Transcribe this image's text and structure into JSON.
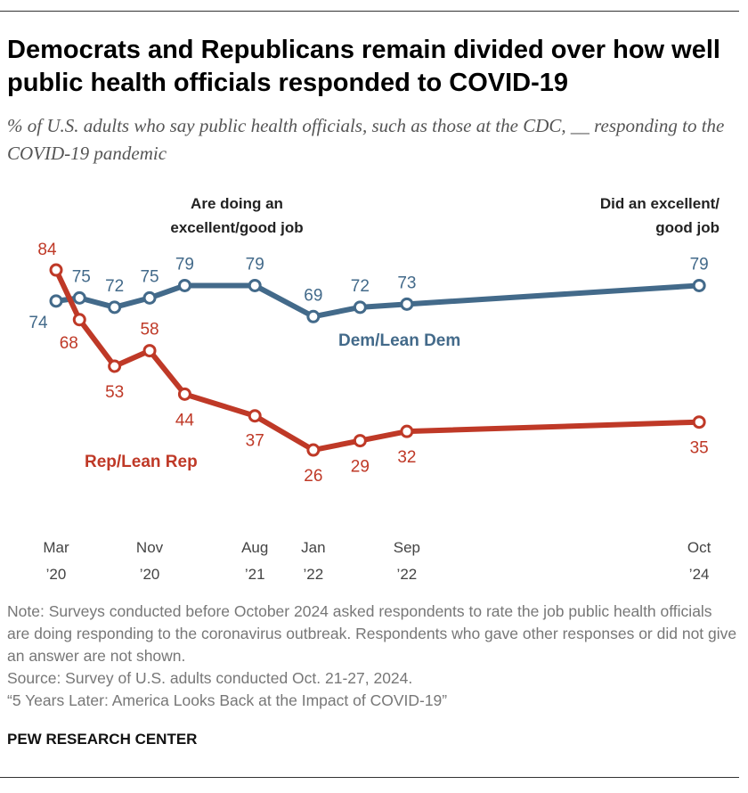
{
  "title": "Democrats and Republicans remain divided over how well public health officials responded to COVID-19",
  "subtitle": "% of U.S. adults who say public health officials, such as those at the CDC, __ responding to the COVID-19 pandemic",
  "chart_data": {
    "type": "line",
    "x": [
      "2020-03",
      "2020-05",
      "2020-08",
      "2020-11",
      "2021-02",
      "2021-08",
      "2022-01",
      "2022-05",
      "2022-09",
      "2024-10"
    ],
    "x_ticks": [
      {
        "x": "2020-03",
        "line1": "Mar",
        "line2": "’20"
      },
      {
        "x": "2020-11",
        "line1": "Nov",
        "line2": "’20"
      },
      {
        "x": "2021-08",
        "line1": "Aug",
        "line2": "’21"
      },
      {
        "x": "2022-01",
        "line1": "Jan",
        "line2": "’22"
      },
      {
        "x": "2022-09",
        "line1": "Sep",
        "line2": "’22"
      },
      {
        "x": "2024-10",
        "line1": "Oct",
        "line2": "’24"
      }
    ],
    "series": [
      {
        "name": "Dem/Lean Dem",
        "color": "#436a8a",
        "values": [
          74,
          75,
          72,
          75,
          79,
          79,
          69,
          72,
          73,
          79
        ]
      },
      {
        "name": "Rep/Lean Rep",
        "color": "#bf3927",
        "values": [
          84,
          68,
          53,
          58,
          44,
          37,
          26,
          29,
          32,
          35
        ]
      }
    ],
    "annotations": {
      "left_line1": "Are doing an",
      "left_line2": "excellent/good job",
      "right_line1": "Did an excellent/",
      "right_line2": "good job"
    },
    "grid": false
  },
  "notes": {
    "note": "Note: Surveys conducted before October 2024 asked respondents to rate the job public health officials are doing responding to the coronavirus outbreak. Respondents who gave other responses or did not give an answer are not shown.",
    "source": "Source: Survey of U.S. adults conducted Oct. 21-27, 2024.",
    "report": "“5 Years Later: America Looks Back at the Impact of COVID-19”"
  },
  "brand": "PEW RESEARCH CENTER"
}
